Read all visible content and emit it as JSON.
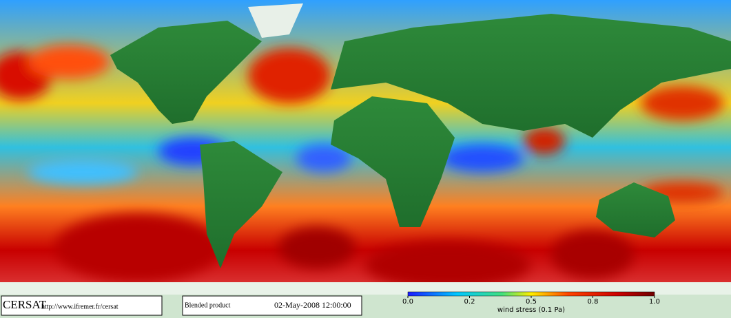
{
  "header": {
    "logo": "CERSAT",
    "url": "http://www.ifremer.fr/cersat"
  },
  "product": {
    "name": "Blended product",
    "date": "02-May-2008 12:00:00"
  },
  "colorbar": {
    "ticks": [
      {
        "value": 0,
        "label": "0.0"
      },
      {
        "value": 0.2,
        "label": "0.2"
      },
      {
        "value": 0.5,
        "label": "0.5"
      },
      {
        "value": 0.8,
        "label": "0.8"
      },
      {
        "value": 1,
        "label": "1.0"
      }
    ],
    "label": "wind stress (0.1 Pa)"
  }
}
